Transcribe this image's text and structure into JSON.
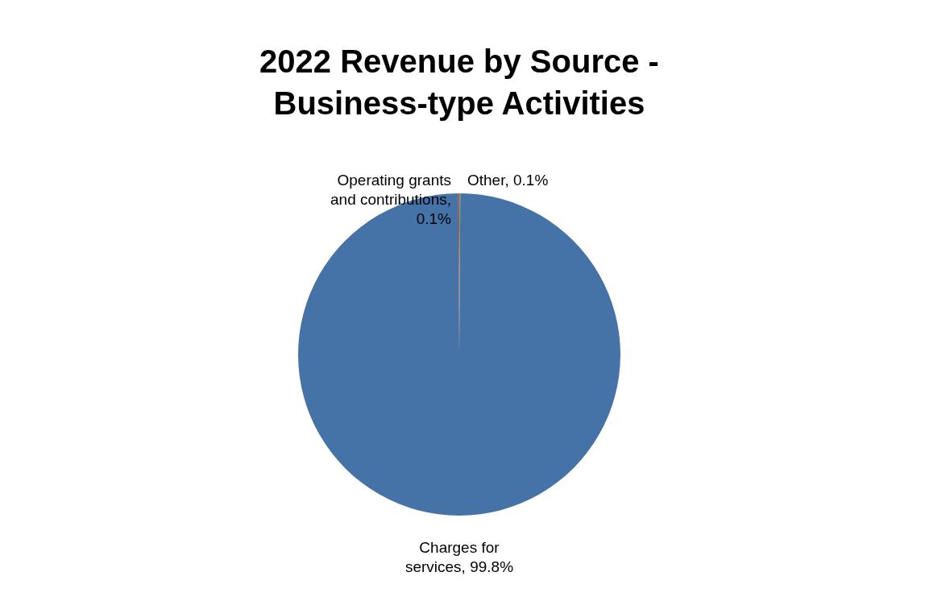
{
  "chart_data": {
    "type": "pie",
    "title": "2022 Revenue by Source - Business-type Activities",
    "categories": [
      "Other, 0.1%",
      "Charges for services, 99.8%",
      "Operating grants and contributions, 0.1%"
    ],
    "values": [
      0.1,
      99.8,
      0.1
    ],
    "colors": [
      "#89a54e",
      "#4572a7",
      "#aa4643"
    ],
    "legend": false
  }
}
